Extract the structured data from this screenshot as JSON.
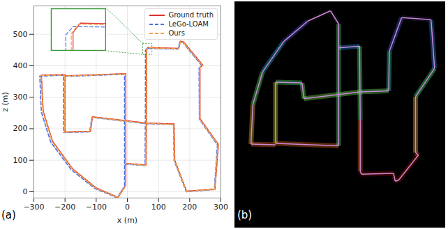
{
  "chart_data": [
    {
      "type": "line",
      "panel_label": "(a)",
      "xlabel": "x (m)",
      "ylabel": "z (m)",
      "xlim": [
        -300,
        300
      ],
      "ylim": [
        -20,
        590
      ],
      "xticks": [
        -300,
        -200,
        -100,
        0,
        100,
        200,
        300
      ],
      "yticks": [
        0,
        100,
        200,
        300,
        400,
        500
      ],
      "grid": true,
      "legend": "top-right",
      "series": [
        {
          "name": "Ground truth",
          "color": "#e0302b",
          "line_style": "solid",
          "x": [
            -5,
            60,
            62,
            62,
            66,
            165,
            170,
            180,
            242,
            233,
            233,
            292,
            281,
            190,
            152,
            150,
            62,
            -112,
            -118,
            -200,
            -200,
            -5,
            -5,
            -30,
            -100,
            -175,
            -240,
            -270,
            -276,
            -200
          ],
          "values": [
            90,
            85,
            300,
            450,
            458,
            455,
            478,
            476,
            402,
            395,
            232,
            150,
            8,
            2,
            100,
            215,
            218,
            238,
            192,
            190,
            368,
            375,
            20,
            -18,
            12,
            72,
            160,
            255,
            370,
            372
          ]
        },
        {
          "name": "LeGo-LOAM",
          "color": "#4a6fe3",
          "line_style": "dashed",
          "x": [
            -7,
            57,
            58,
            58,
            62,
            163,
            168,
            178,
            239,
            230,
            231,
            289,
            279,
            189,
            150,
            148,
            60,
            -114,
            -121,
            -204,
            -205,
            -9,
            -9,
            -33,
            -104,
            -180,
            -246,
            -276,
            -281,
            -204
          ],
          "values": [
            88,
            83,
            300,
            448,
            455,
            453,
            476,
            474,
            400,
            393,
            230,
            149,
            7,
            0,
            99,
            213,
            216,
            236,
            190,
            188,
            366,
            373,
            18,
            -19,
            10,
            70,
            158,
            253,
            367,
            370
          ]
        },
        {
          "name": "Ours",
          "color": "#f5a142",
          "line_style": "dashed",
          "x": [
            -5,
            59,
            61,
            61,
            65,
            165,
            170,
            179,
            241,
            232,
            232,
            291,
            280,
            190,
            151,
            149,
            61,
            -113,
            -119,
            -201,
            -201,
            -6,
            -6,
            -31,
            -101,
            -176,
            -241,
            -271,
            -277,
            -201
          ],
          "values": [
            89,
            84,
            300,
            449,
            457,
            454,
            477,
            475,
            401,
            394,
            231,
            150,
            8,
            1,
            100,
            214,
            217,
            237,
            191,
            189,
            367,
            374,
            19,
            -18,
            11,
            71,
            159,
            254,
            369,
            371
          ]
        }
      ]
    },
    {
      "type": "line",
      "xlim": [
        50,
        80
      ],
      "ylim": [
        435,
        470
      ],
      "tick_labels": false
    },
    {
      "type": "map",
      "panel_label": "(b)"
    }
  ]
}
